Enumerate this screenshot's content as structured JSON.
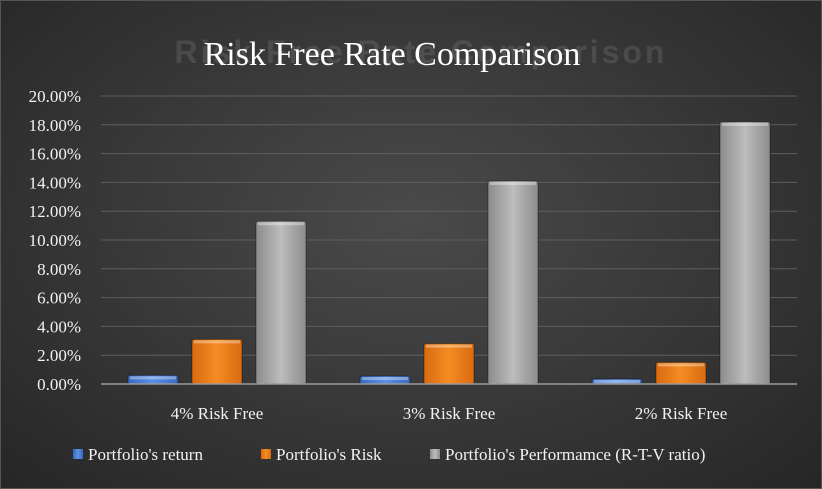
{
  "chart_data": {
    "type": "bar",
    "title": "Risk Free Rate Comparison",
    "categories": [
      "4% Risk Free",
      "3% Risk Free",
      "2% Risk Free"
    ],
    "series": [
      {
        "name": "Portfolio's return",
        "values": [
          0.6,
          0.55,
          0.35
        ],
        "color": "#4a7fd9"
      },
      {
        "name": "Portfolio's Risk",
        "values": [
          3.1,
          2.8,
          1.5
        ],
        "color": "#f07d1a"
      },
      {
        "name": "Portfolio's Performamce (R-T-V  ratio)",
        "values": [
          11.3,
          14.1,
          18.2
        ],
        "color": "#a6a6a6"
      }
    ],
    "ylim": [
      0,
      20
    ],
    "yticks": [
      "0.00%",
      "2.00%",
      "4.00%",
      "6.00%",
      "8.00%",
      "10.00%",
      "12.00%",
      "14.00%",
      "16.00%",
      "18.00%",
      "20.00%"
    ],
    "grid": true,
    "legend": "bottom"
  }
}
